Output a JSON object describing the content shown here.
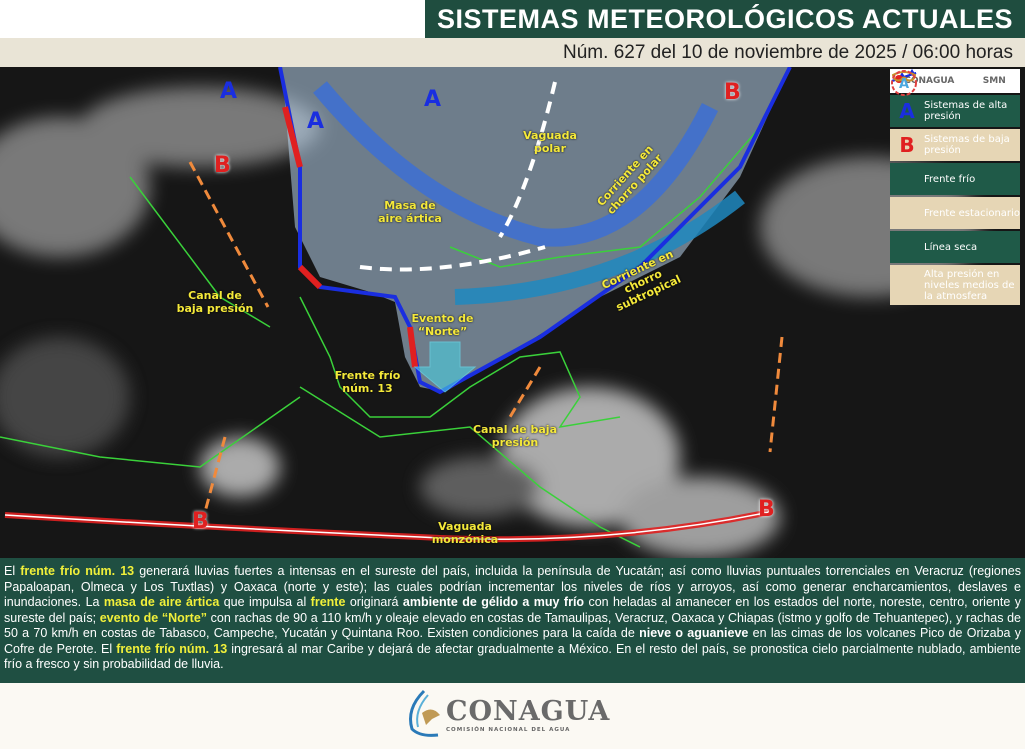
{
  "header": {
    "title": "SISTEMAS METEOROLÓGICOS ACTUALES",
    "subtitle": "Núm. 627 del 10 de noviembre de 2025 / 06:00 horas"
  },
  "legend": {
    "logos": [
      "CONAGUA",
      "SMN"
    ],
    "items": [
      {
        "icon": "high-pressure-A",
        "label": "Sistemas de alta presión"
      },
      {
        "icon": "low-pressure-B",
        "label": "Sistemas de baja presión"
      },
      {
        "icon": "cold-front",
        "label": "Frente frío"
      },
      {
        "icon": "stationary-front",
        "label": "Frente estacionario"
      },
      {
        "icon": "dry-line",
        "label": "Línea seca"
      },
      {
        "icon": "mid-level-high",
        "label": "Alta presión en niveles medios de la atmosfera"
      }
    ]
  },
  "map": {
    "high_symbol": "A",
    "low_symbol": "B",
    "labels": {
      "vaguada_polar": "Vaguada polar",
      "masa": "Masa de aire ártica",
      "chorro_polar": "Corriente en chorro polar",
      "chorro_sub": "Corriente en chorro subtropical",
      "canal1": "Canal de baja presión",
      "canal2": "Canal de baja presión",
      "norte": "Evento de “Norte”",
      "frente": "Frente frío núm. 13",
      "monzonica": "Vaguada monzónica"
    },
    "colors": {
      "high": "#1a2ee0",
      "low": "#e02020",
      "cold_front": "#1a2ee0",
      "warm": "#e02020",
      "trough": "#f08a3c"
    }
  },
  "bulletin": [
    {
      "t": "El "
    },
    {
      "t": "frente frío núm. 13",
      "s": "y"
    },
    {
      "t": " generará lluvias fuertes a intensas en el sureste del país, incluida la península de Yucatán; así como lluvias puntuales torrenciales en Veracruz (regiones Papaloapan, Olmeca y Los Tuxtlas) y Oaxaca (norte y este); las cuales podrían incrementar los niveles de ríos y arroyos, así como generar encharcamientos, deslaves e inundaciones. La "
    },
    {
      "t": "masa de aire ártica",
      "s": "y"
    },
    {
      "t": " que impulsa al "
    },
    {
      "t": "frente",
      "s": "y"
    },
    {
      "t": " originará "
    },
    {
      "t": "ambiente de gélido a muy frío",
      "s": "w"
    },
    {
      "t": " con heladas al amanecer en los estados del norte, noreste, centro, oriente y sureste del país; "
    },
    {
      "t": "evento de “Norte”",
      "s": "y"
    },
    {
      "t": " con rachas de 90 a 110 km/h y oleaje elevado en costas de Tamaulipas, Veracruz, Oaxaca y Chiapas (istmo y golfo de Tehuantepec), y rachas de 50 a 70 km/h en costas de Tabasco, Campeche, Yucatán y Quintana Roo. Existen condiciones para la caída de "
    },
    {
      "t": "nieve o aguanieve",
      "s": "w"
    },
    {
      "t": " en las cimas de los volcanes Pico de Orizaba y Cofre de Perote. El "
    },
    {
      "t": "frente frío núm. 13",
      "s": "y"
    },
    {
      "t": " ingresará al mar Caribe y dejará de afectar gradualmente a México. En el resto del país, se pronostica cielo parcialmente nublado, ambiente frío a fresco y sin probabilidad de lluvia."
    }
  ],
  "footer": {
    "name": "CONAGUA",
    "subtitle": "COMISIÓN NACIONAL DEL AGUA"
  }
}
